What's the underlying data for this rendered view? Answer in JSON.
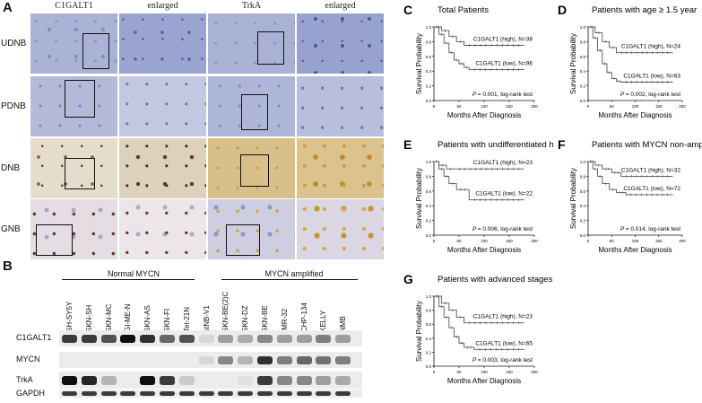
{
  "panelA": {
    "letter": "A",
    "col_headers": [
      "C1GALT1",
      "enlarged",
      "TrkA",
      "enlarged"
    ],
    "row_labels": [
      "UDNB",
      "PDNB",
      "DNB",
      "GNB"
    ]
  },
  "panelB": {
    "letter": "B",
    "group_normal": "Normal MYCN",
    "group_amplified": "MYCN amplified",
    "lanes": [
      "SH-SY5Y",
      "SKN-SH",
      "SKN-MC",
      "GI-ME-N",
      "SKN-AS",
      "SKN-FI",
      "Tet-21N",
      "stNB-V1",
      "SKN-BE(2)C",
      "SKN-DZ",
      "SKN-BE",
      "IMR-32",
      "CHP-134",
      "KELLY",
      "NMB"
    ],
    "blots": [
      "C1GALT1",
      "MYCN",
      "TrkA",
      "GAPDH"
    ]
  },
  "km_common": {
    "ylabel": "Survival Probability",
    "xlabel": "Months After Diagnosis",
    "yticks": [
      "0.0",
      "0.2",
      "0.4",
      "0.6",
      "0.8",
      "1.0"
    ],
    "xticks": [
      "0",
      "50",
      "100",
      "150",
      "200"
    ]
  },
  "km": [
    {
      "letter": "C",
      "title": "Total Patients",
      "high": "C1GALT1 (high), N=38",
      "low": "C1GALT1 (low), N=96",
      "p": "= 0.001, log-rank test"
    },
    {
      "letter": "D",
      "title": "Patients with age ≥ 1.5 year",
      "high": "C1GALT1 (high), N=24",
      "low": "C1GALT1 (low), N=63",
      "p": "= 0.002, log-rank test"
    },
    {
      "letter": "E",
      "title": "Patients with undifferentiated histology",
      "high": "C1GALT1 (high), N=23",
      "low": "C1GALT1 (low), N=22",
      "p": "= 0.006, log-rank test"
    },
    {
      "letter": "F",
      "title": "Patients with MYCN non-amplified",
      "high": "C1GALT1 (high), N=32",
      "low": "C1GALT1 (low), N=72",
      "p": "= 0.014, log-rank test"
    },
    {
      "letter": "G",
      "title": "Patients with advanced stages",
      "high": "C1GALT1 (high), N=23",
      "low": "C1GALT1 (low), N=65",
      "p": "= 0.003, log-rank test"
    }
  ],
  "chart_data": [
    {
      "type": "line",
      "title": "Total Patients",
      "xlabel": "Months After Diagnosis",
      "ylabel": "Survival Probability",
      "xlim": [
        0,
        200
      ],
      "ylim": [
        0,
        1
      ],
      "series": [
        {
          "name": "C1GALT1 (high), N=38",
          "x": [
            0,
            15,
            30,
            45,
            60,
            180
          ],
          "y": [
            1.0,
            0.95,
            0.87,
            0.8,
            0.75,
            0.75
          ]
        },
        {
          "name": "C1GALT1 (low), N=96",
          "x": [
            0,
            10,
            20,
            30,
            40,
            50,
            60,
            70,
            180
          ],
          "y": [
            1.0,
            0.9,
            0.78,
            0.65,
            0.55,
            0.5,
            0.45,
            0.42,
            0.42
          ]
        }
      ]
    },
    {
      "type": "line",
      "title": "Patients with age ≥ 1.5 year",
      "xlabel": "Months After Diagnosis",
      "ylabel": "Survival Probability",
      "xlim": [
        0,
        200
      ],
      "ylim": [
        0,
        1
      ],
      "series": [
        {
          "name": "C1GALT1 (high), N=24",
          "x": [
            0,
            15,
            30,
            45,
            60,
            180
          ],
          "y": [
            1.0,
            0.92,
            0.8,
            0.72,
            0.65,
            0.65
          ]
        },
        {
          "name": "C1GALT1 (low), N=63",
          "x": [
            0,
            10,
            20,
            30,
            40,
            50,
            60,
            70,
            180
          ],
          "y": [
            1.0,
            0.85,
            0.68,
            0.5,
            0.38,
            0.3,
            0.26,
            0.25,
            0.25
          ]
        }
      ]
    },
    {
      "type": "line",
      "title": "Patients with undifferentiated histology",
      "xlabel": "Months After Diagnosis",
      "ylabel": "Survival Probability",
      "xlim": [
        0,
        200
      ],
      "ylim": [
        0,
        1
      ],
      "series": [
        {
          "name": "C1GALT1 (high), N=23",
          "x": [
            0,
            10,
            25,
            40,
            180
          ],
          "y": [
            1.0,
            0.95,
            0.9,
            0.9,
            0.9
          ]
        },
        {
          "name": "C1GALT1 (low), N=22",
          "x": [
            0,
            10,
            20,
            30,
            45,
            70,
            180
          ],
          "y": [
            1.0,
            0.9,
            0.8,
            0.7,
            0.62,
            0.48,
            0.48
          ]
        }
      ]
    },
    {
      "type": "line",
      "title": "Patients with MYCN non-amplified",
      "xlabel": "Months After Diagnosis",
      "ylabel": "Survival Probability",
      "xlim": [
        0,
        200
      ],
      "ylim": [
        0,
        1
      ],
      "series": [
        {
          "name": "C1GALT1 (high), N=32",
          "x": [
            0,
            15,
            30,
            50,
            70,
            180
          ],
          "y": [
            1.0,
            0.95,
            0.9,
            0.85,
            0.8,
            0.8
          ]
        },
        {
          "name": "C1GALT1 (low), N=72",
          "x": [
            0,
            10,
            20,
            30,
            45,
            60,
            80,
            180
          ],
          "y": [
            1.0,
            0.9,
            0.8,
            0.7,
            0.62,
            0.58,
            0.55,
            0.55
          ]
        }
      ]
    },
    {
      "type": "line",
      "title": "Patients with advanced stages",
      "xlabel": "Months After Diagnosis",
      "ylabel": "Survival Probability",
      "xlim": [
        0,
        200
      ],
      "ylim": [
        0,
        1
      ],
      "series": [
        {
          "name": "C1GALT1 (high), N=23",
          "x": [
            0,
            15,
            30,
            45,
            60,
            180
          ],
          "y": [
            1.0,
            0.9,
            0.8,
            0.7,
            0.62,
            0.62
          ]
        },
        {
          "name": "C1GALT1 (low), N=65",
          "x": [
            0,
            10,
            20,
            30,
            40,
            50,
            60,
            80,
            180
          ],
          "y": [
            1.0,
            0.85,
            0.7,
            0.55,
            0.42,
            0.33,
            0.27,
            0.24,
            0.24
          ]
        }
      ]
    }
  ]
}
